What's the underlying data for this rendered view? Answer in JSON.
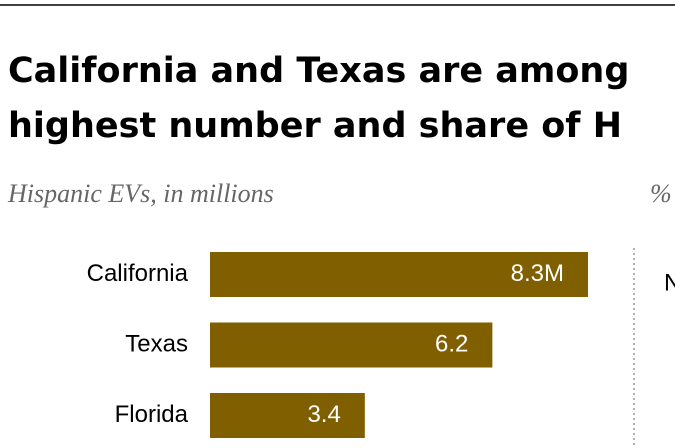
{
  "chart_data": {
    "type": "bar",
    "orientation": "horizontal",
    "title_lines": [
      "California and Texas are among",
      "highest number and share of H"
    ],
    "subtitle": "Hispanic EVs, in millions",
    "right_panel_subtitle": "%",
    "right_panel_label": "N",
    "categories": [
      "California",
      "Texas",
      "Florida"
    ],
    "values": [
      8.3,
      6.2,
      3.4
    ],
    "value_labels": [
      "8.3M",
      "6.2",
      "3.4"
    ],
    "color": "#7f5f00"
  }
}
